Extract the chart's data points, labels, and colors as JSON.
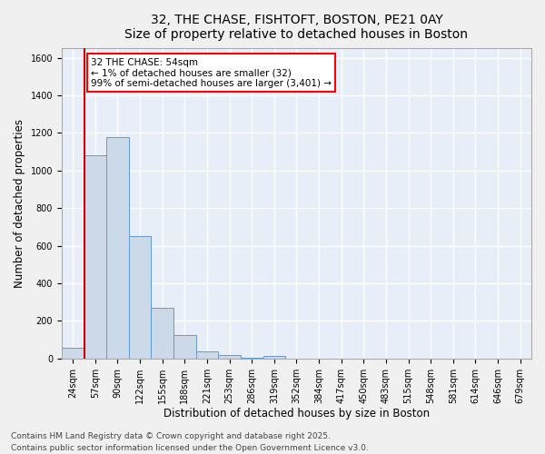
{
  "title_line1": "32, THE CHASE, FISHTOFT, BOSTON, PE21 0AY",
  "title_line2": "Size of property relative to detached houses in Boston",
  "xlabel": "Distribution of detached houses by size in Boston",
  "ylabel": "Number of detached properties",
  "bar_color": "#ccd9e8",
  "bar_edge_color": "#6699cc",
  "annotation_line_color": "#cc0000",
  "plot_bg_color": "#e8eef8",
  "grid_color": "#ffffff",
  "fig_bg_color": "#f0f0f0",
  "bin_labels": [
    "24sqm",
    "57sqm",
    "90sqm",
    "122sqm",
    "155sqm",
    "188sqm",
    "221sqm",
    "253sqm",
    "286sqm",
    "319sqm",
    "352sqm",
    "384sqm",
    "417sqm",
    "450sqm",
    "483sqm",
    "515sqm",
    "548sqm",
    "581sqm",
    "614sqm",
    "646sqm",
    "679sqm"
  ],
  "bar_heights": [
    55,
    1080,
    1180,
    650,
    270,
    125,
    40,
    20,
    5,
    15,
    0,
    0,
    0,
    0,
    0,
    0,
    0,
    0,
    0,
    0,
    0
  ],
  "ylim": [
    0,
    1650
  ],
  "yticks": [
    0,
    200,
    400,
    600,
    800,
    1000,
    1200,
    1400,
    1600
  ],
  "annotation_text_line1": "32 THE CHASE: 54sqm",
  "annotation_text_line2": "← 1% of detached houses are smaller (32)",
  "annotation_text_line3": "99% of semi-detached houses are larger (3,401) →",
  "vline_bin": 1,
  "footer_line1": "Contains HM Land Registry data © Crown copyright and database right 2025.",
  "footer_line2": "Contains public sector information licensed under the Open Government Licence v3.0.",
  "title_fontsize": 10,
  "subtitle_fontsize": 9,
  "axis_label_fontsize": 8.5,
  "tick_fontsize": 7,
  "annotation_fontsize": 7.5,
  "footer_fontsize": 6.5
}
